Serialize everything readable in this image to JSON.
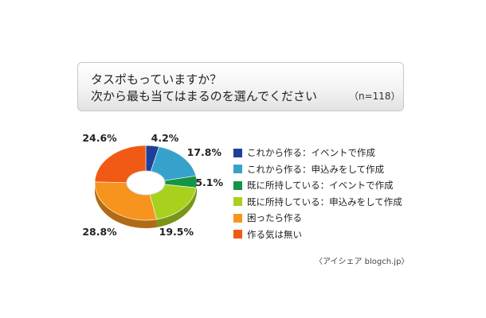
{
  "title": {
    "line1": "タスポもっていますか？",
    "line2": "次から最も当てはまるのを選んでください",
    "n": "（n=118）"
  },
  "credit": "〈アイシェア blogch.jp〉",
  "chart_data": {
    "type": "pie",
    "title": "タスポもっていますか？ 次から最も当てはまるのを選んでください",
    "sample_size": "n=118",
    "style": "donut",
    "unit": "%",
    "slices": [
      {
        "label": "これから作る：イベントで作成",
        "value": 4.2,
        "value_label": "4.2%",
        "color": "#1f3f99"
      },
      {
        "label": "これから作る：申込みをして作成",
        "value": 17.8,
        "value_label": "17.8%",
        "color": "#36a2cc"
      },
      {
        "label": "既に所持している：イベントで作成",
        "value": 5.1,
        "value_label": "5.1%",
        "color": "#149447"
      },
      {
        "label": "既に所持している：申込みをして作成",
        "value": 19.5,
        "value_label": "19.5%",
        "color": "#a8d11e"
      },
      {
        "label": "困ったら作る",
        "value": 28.8,
        "value_label": "28.8%",
        "color": "#f7941d"
      },
      {
        "label": "作る気は無い",
        "value": 24.6,
        "value_label": "24.6%",
        "color": "#f05a14"
      }
    ],
    "legend_position": "right"
  }
}
